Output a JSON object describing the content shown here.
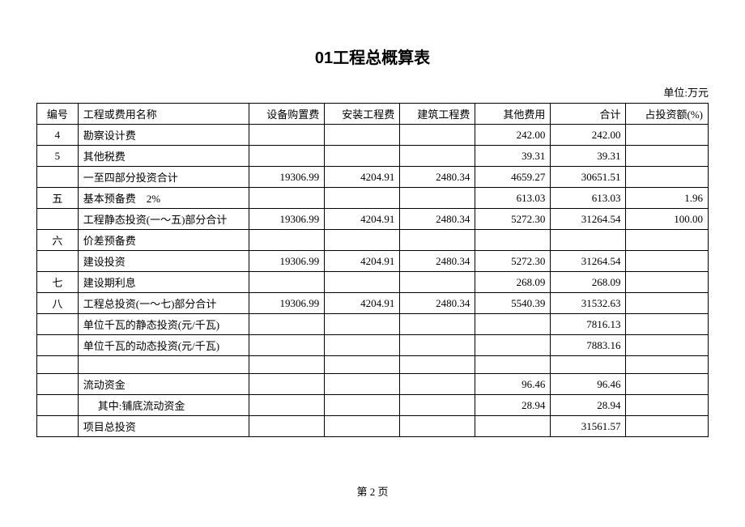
{
  "title": "01工程总概算表",
  "unit_label": "单位:万元",
  "columns": [
    "编号",
    "工程或费用名称",
    "设备购置费",
    "安装工程费",
    "建筑工程费",
    "其他费用",
    "合计",
    "占投资额(%)"
  ],
  "rows": [
    {
      "no": "4",
      "name": "勘察设计费",
      "c1": "",
      "c2": "",
      "c3": "",
      "c4": "242.00",
      "c5": "242.00",
      "c6": ""
    },
    {
      "no": "5",
      "name": "其他税费",
      "c1": "",
      "c2": "",
      "c3": "",
      "c4": "39.31",
      "c5": "39.31",
      "c6": ""
    },
    {
      "no": "",
      "name": "一至四部分投资合计",
      "c1": "19306.99",
      "c2": "4204.91",
      "c3": "2480.34",
      "c4": "4659.27",
      "c5": "30651.51",
      "c6": ""
    },
    {
      "no": "五",
      "name": "基本预备费　2%",
      "c1": "",
      "c2": "",
      "c3": "",
      "c4": "613.03",
      "c5": "613.03",
      "c6": "1.96"
    },
    {
      "no": "",
      "name": "工程静态投资(一～五)部分合计",
      "c1": "19306.99",
      "c2": "4204.91",
      "c3": "2480.34",
      "c4": "5272.30",
      "c5": "31264.54",
      "c6": "100.00"
    },
    {
      "no": "六",
      "name": "价差预备费",
      "c1": "",
      "c2": "",
      "c3": "",
      "c4": "",
      "c5": "",
      "c6": ""
    },
    {
      "no": "",
      "name": "建设投资",
      "c1": "19306.99",
      "c2": "4204.91",
      "c3": "2480.34",
      "c4": "5272.30",
      "c5": "31264.54",
      "c6": ""
    },
    {
      "no": "七",
      "name": "建设期利息",
      "c1": "",
      "c2": "",
      "c3": "",
      "c4": "268.09",
      "c5": "268.09",
      "c6": ""
    },
    {
      "no": "八",
      "name": "工程总投资(一～七)部分合计",
      "c1": "19306.99",
      "c2": "4204.91",
      "c3": "2480.34",
      "c4": "5540.39",
      "c5": "31532.63",
      "c6": ""
    },
    {
      "no": "",
      "name": "单位千瓦的静态投资(元/千瓦)",
      "c1": "",
      "c2": "",
      "c3": "",
      "c4": "",
      "c5": "7816.13",
      "c6": ""
    },
    {
      "no": "",
      "name": "单位千瓦的动态投资(元/千瓦)",
      "c1": "",
      "c2": "",
      "c3": "",
      "c4": "",
      "c5": "7883.16",
      "c6": ""
    },
    {
      "no": "",
      "name": "",
      "c1": "",
      "c2": "",
      "c3": "",
      "c4": "",
      "c5": "",
      "c6": ""
    },
    {
      "no": "",
      "name": "流动资金",
      "c1": "",
      "c2": "",
      "c3": "",
      "c4": "96.46",
      "c5": "96.46",
      "c6": ""
    },
    {
      "no": "",
      "name": "其中:铺底流动资金",
      "c1": "",
      "c2": "",
      "c3": "",
      "c4": "28.94",
      "c5": "28.94",
      "c6": "",
      "indent": true
    },
    {
      "no": "",
      "name": "项目总投资",
      "c1": "",
      "c2": "",
      "c3": "",
      "c4": "",
      "c5": "31561.57",
      "c6": ""
    }
  ],
  "footer": "第 2 页"
}
